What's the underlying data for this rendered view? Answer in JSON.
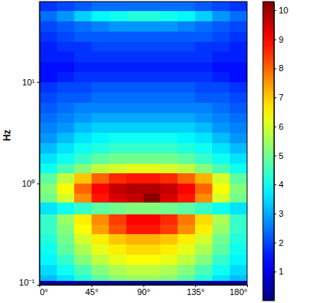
{
  "chart_data": {
    "type": "heatmap",
    "y_label": "Hz",
    "log": "y",
    "xlim": [
      0,
      180
    ],
    "ylim": [
      0.1,
      62
    ],
    "xticks": [
      {
        "value": 0,
        "label": "0°"
      },
      {
        "value": 45,
        "label": "45°"
      },
      {
        "value": 90,
        "label": "90°"
      },
      {
        "value": 135,
        "label": "135°"
      },
      {
        "value": 180,
        "label": "180°"
      }
    ],
    "yticks": [
      {
        "value": 0.1,
        "label": "10⁻¹"
      },
      {
        "value": 1,
        "label": "10⁰"
      },
      {
        "value": 10,
        "label": "10¹"
      }
    ],
    "x_edges": [
      0,
      15,
      30,
      45,
      60,
      75,
      90,
      105,
      120,
      135,
      150,
      165,
      180
    ],
    "y_edges": [
      0.1,
      0.11,
      0.126,
      0.158,
      0.2,
      0.251,
      0.316,
      0.398,
      0.501,
      0.65,
      0.794,
      1,
      1.26,
      1.58,
      2,
      2.51,
      3.16,
      3.98,
      5.01,
      6.31,
      7.94,
      10,
      12.6,
      15.8,
      20,
      25.1,
      31.6,
      39.8,
      50.1,
      62
    ],
    "cells": [
      [
        0.3,
        0.3,
        0.3,
        0.3,
        0.3,
        0.3,
        0.3,
        0.3,
        0.3,
        0.3,
        0.3,
        0.3
      ],
      [
        3.2,
        3.6,
        4.2,
        4.8,
        5.2,
        5.4,
        5.4,
        5.2,
        4.8,
        4.2,
        3.6,
        3.2
      ],
      [
        3.5,
        4.0,
        4.6,
        5.2,
        5.6,
        5.8,
        5.8,
        5.6,
        5.2,
        4.6,
        4.0,
        3.5
      ],
      [
        3.8,
        4.4,
        5.2,
        5.8,
        6.2,
        6.4,
        6.4,
        6.2,
        5.8,
        5.2,
        4.4,
        3.8
      ],
      [
        4.0,
        4.8,
        5.6,
        6.2,
        6.6,
        6.8,
        6.8,
        6.6,
        6.2,
        5.6,
        4.8,
        4.0
      ],
      [
        4.2,
        5.0,
        6.0,
        6.6,
        7.0,
        7.2,
        7.2,
        7.0,
        6.6,
        6.0,
        5.0,
        4.2
      ],
      [
        4.4,
        5.2,
        6.4,
        7.4,
        8.2,
        8.8,
        8.8,
        8.4,
        7.6,
        6.6,
        5.4,
        4.4
      ],
      [
        4.4,
        5.4,
        6.6,
        7.6,
        8.4,
        9.0,
        9.0,
        8.6,
        7.8,
        6.8,
        5.6,
        4.4
      ],
      [
        3.6,
        4.0,
        4.4,
        4.8,
        5.0,
        5.2,
        5.2,
        5.0,
        4.8,
        4.4,
        4.0,
        3.6
      ],
      [
        5.0,
        6.0,
        7.6,
        8.8,
        9.4,
        9.6,
        10.2,
        9.4,
        8.8,
        7.6,
        6.0,
        5.0
      ],
      [
        5.2,
        6.4,
        8.0,
        9.0,
        9.6,
        9.8,
        9.8,
        9.6,
        9.0,
        8.0,
        6.4,
        5.2
      ],
      [
        4.8,
        5.8,
        7.0,
        8.0,
        8.6,
        8.8,
        8.8,
        8.6,
        8.0,
        7.2,
        6.0,
        4.8
      ],
      [
        4.0,
        4.6,
        5.2,
        5.8,
        6.0,
        6.2,
        6.2,
        6.0,
        5.8,
        5.2,
        4.6,
        4.0
      ],
      [
        3.6,
        4.0,
        4.4,
        4.8,
        5.0,
        5.0,
        5.0,
        5.0,
        4.8,
        4.4,
        4.0,
        3.6
      ],
      [
        3.2,
        3.6,
        4.0,
        4.2,
        4.4,
        4.4,
        4.4,
        4.4,
        4.2,
        4.0,
        3.6,
        3.2
      ],
      [
        2.8,
        3.2,
        3.6,
        3.8,
        4.0,
        4.0,
        4.0,
        4.0,
        3.8,
        3.6,
        3.2,
        2.8
      ],
      [
        2.6,
        2.8,
        3.2,
        3.4,
        3.4,
        3.4,
        3.4,
        3.4,
        3.4,
        3.2,
        2.8,
        2.6
      ],
      [
        2.4,
        2.6,
        2.8,
        3.0,
        3.0,
        3.0,
        3.0,
        3.0,
        3.0,
        2.8,
        2.6,
        2.4
      ],
      [
        2.2,
        2.4,
        2.6,
        2.6,
        2.6,
        2.6,
        2.6,
        2.6,
        2.6,
        2.6,
        2.4,
        2.2
      ],
      [
        2.0,
        2.2,
        2.2,
        2.4,
        2.4,
        2.4,
        2.4,
        2.4,
        2.4,
        2.2,
        2.2,
        2.0
      ],
      [
        1.8,
        2.0,
        2.0,
        2.2,
        2.2,
        2.2,
        2.2,
        2.2,
        2.2,
        2.0,
        2.0,
        1.8
      ],
      [
        1.4,
        1.6,
        1.8,
        1.8,
        1.8,
        1.8,
        1.8,
        1.8,
        1.8,
        1.8,
        1.6,
        1.4
      ],
      [
        1.4,
        1.4,
        1.6,
        1.6,
        1.6,
        1.6,
        1.6,
        1.6,
        1.6,
        1.6,
        1.4,
        1.4
      ],
      [
        1.6,
        1.6,
        1.8,
        1.8,
        1.8,
        1.8,
        1.8,
        1.8,
        1.8,
        1.8,
        1.6,
        1.6
      ],
      [
        1.6,
        1.8,
        1.8,
        2.0,
        2.0,
        2.0,
        2.0,
        2.0,
        2.0,
        1.8,
        1.8,
        1.6
      ],
      [
        1.8,
        2.0,
        2.2,
        2.2,
        2.2,
        2.2,
        2.2,
        2.2,
        2.2,
        2.2,
        2.0,
        1.8
      ],
      [
        2.0,
        2.2,
        2.4,
        2.6,
        2.8,
        2.8,
        2.8,
        2.8,
        2.6,
        2.4,
        2.2,
        2.0
      ],
      [
        2.4,
        2.8,
        3.4,
        3.8,
        4.0,
        4.2,
        4.2,
        4.0,
        3.8,
        3.4,
        2.8,
        2.4
      ],
      [
        1.8,
        2.0,
        2.2,
        2.4,
        2.4,
        2.4,
        2.4,
        2.4,
        2.4,
        2.2,
        2.0,
        1.8
      ]
    ],
    "colorbar": {
      "range": [
        0,
        10.3
      ],
      "ticks": [
        1,
        2,
        3,
        4,
        5,
        6,
        7,
        8,
        9,
        10
      ]
    }
  }
}
